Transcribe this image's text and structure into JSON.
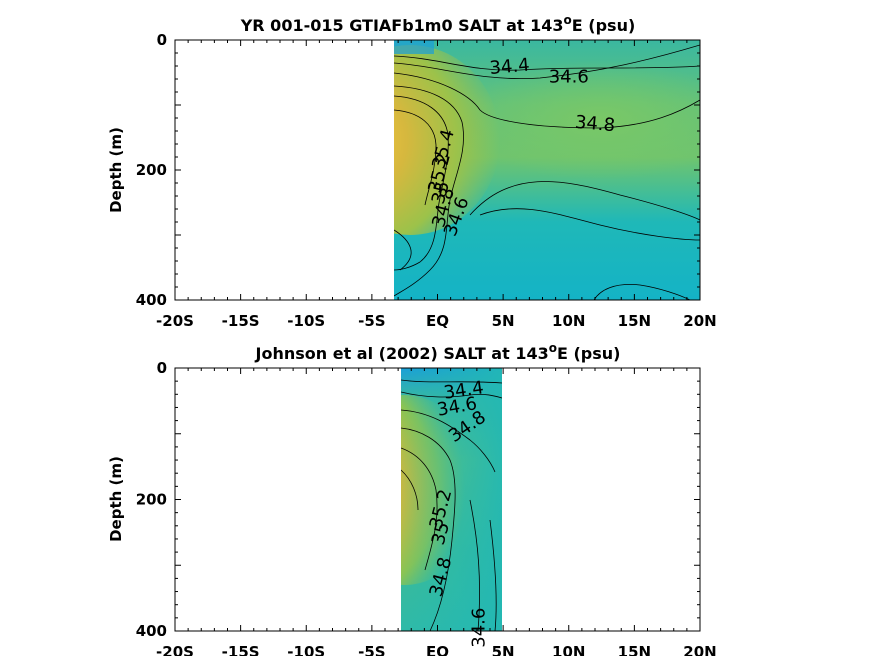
{
  "chart_data": [
    {
      "type": "heatmap",
      "title": "YR 001-015 GTIAFb1m0 SALT at 143",
      "title_sup": "o",
      "title_suffix": "E (psu)",
      "ylabel": "Depth (m)",
      "xlim": [
        -20,
        20
      ],
      "ylim": [
        0,
        400
      ],
      "x_tick_labels": [
        "-20S",
        "-15S",
        "-10S",
        "-5S",
        "EQ",
        "5N",
        "10N",
        "15N",
        "20N"
      ],
      "x_tick_values": [
        -20,
        -15,
        -10,
        -5,
        0,
        5,
        10,
        15,
        20
      ],
      "y_tick_labels": [
        "0",
        "200",
        "400"
      ],
      "y_tick_values": [
        0,
        200,
        400
      ],
      "data_extent_lat": [
        -3,
        20
      ],
      "contour_labels": [
        {
          "text": "34.4",
          "lat": 5.5,
          "depth": 42,
          "angle": -5
        },
        {
          "text": "34.6",
          "lat": 10,
          "depth": 58,
          "angle": 0
        },
        {
          "text": "34.8",
          "lat": 12,
          "depth": 130,
          "angle": 5
        },
        {
          "text": "35.4",
          "lat": 0.5,
          "depth": 168,
          "angle": -75
        },
        {
          "text": "35.2",
          "lat": 0.2,
          "depth": 205,
          "angle": -75
        },
        {
          "text": "35",
          "lat": 0.3,
          "depth": 235,
          "angle": -75
        },
        {
          "text": "34.8",
          "lat": 0.5,
          "depth": 258,
          "angle": -75
        },
        {
          "text": "34.6",
          "lat": 1.5,
          "depth": 272,
          "angle": -70
        }
      ]
    },
    {
      "type": "heatmap",
      "title": "Johnson et al (2002) SALT at 143",
      "title_sup": "o",
      "title_suffix": "E (psu)",
      "ylabel": "Depth (m)",
      "xlim": [
        -20,
        20
      ],
      "ylim": [
        0,
        400
      ],
      "x_tick_labels": [
        "-20S",
        "-15S",
        "-10S",
        "-5S",
        "EQ",
        "5N",
        "10N",
        "15N",
        "20N"
      ],
      "x_tick_values": [
        -20,
        -15,
        -10,
        -5,
        0,
        5,
        10,
        15,
        20
      ],
      "y_tick_labels": [
        "0",
        "200",
        "400"
      ],
      "y_tick_values": [
        0,
        200,
        400
      ],
      "data_extent_lat": [
        -2.5,
        5
      ],
      "contour_labels": [
        {
          "text": "34.4",
          "lat": 2,
          "depth": 35,
          "angle": -8
        },
        {
          "text": "34.6",
          "lat": 1.5,
          "depth": 60,
          "angle": -10
        },
        {
          "text": "34.8",
          "lat": 2.3,
          "depth": 90,
          "angle": -35
        },
        {
          "text": "35.2",
          "lat": 0.3,
          "depth": 215,
          "angle": -75
        },
        {
          "text": "35",
          "lat": 0.3,
          "depth": 252,
          "angle": -75
        },
        {
          "text": "34.8",
          "lat": 0.3,
          "depth": 318,
          "angle": -75
        },
        {
          "text": "34.6",
          "lat": 3.2,
          "depth": 395,
          "angle": -90
        }
      ]
    }
  ]
}
